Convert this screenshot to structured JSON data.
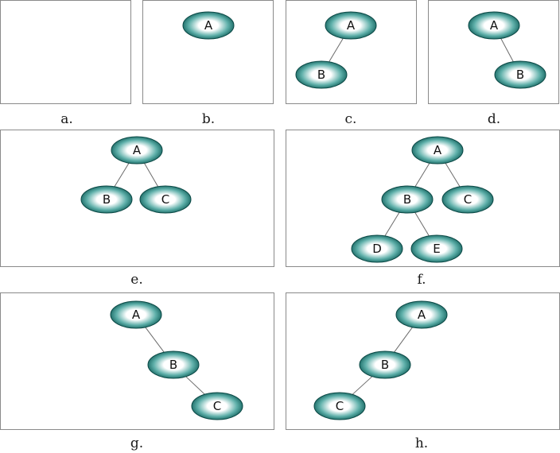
{
  "colors": {
    "node_center": "#ffffff",
    "node_mid": "#5fb0aa",
    "node_edge": "#0b5a55",
    "node_outline": "#0a4744",
    "edge_line": "#6a6a6a"
  },
  "panels": [
    {
      "caption": "a.",
      "nodes": [],
      "edges": []
    },
    {
      "caption": "b.",
      "nodes": [
        "A"
      ],
      "edges": []
    },
    {
      "caption": "c.",
      "nodes": [
        "A",
        "B"
      ],
      "edges": [
        [
          "A",
          "B"
        ]
      ]
    },
    {
      "caption": "d.",
      "nodes": [
        "A",
        "B"
      ],
      "edges": [
        [
          "A",
          "B"
        ]
      ]
    },
    {
      "caption": "e.",
      "nodes": [
        "A",
        "B",
        "C"
      ],
      "edges": [
        [
          "A",
          "B"
        ],
        [
          "A",
          "C"
        ]
      ]
    },
    {
      "caption": "f.",
      "nodes": [
        "A",
        "B",
        "C",
        "D",
        "E"
      ],
      "edges": [
        [
          "A",
          "B"
        ],
        [
          "A",
          "C"
        ],
        [
          "B",
          "D"
        ],
        [
          "B",
          "E"
        ]
      ]
    },
    {
      "caption": "g.",
      "nodes": [
        "A",
        "B",
        "C"
      ],
      "edges": [
        [
          "A",
          "B"
        ],
        [
          "B",
          "C"
        ]
      ]
    },
    {
      "caption": "h.",
      "nodes": [
        "A",
        "B",
        "C"
      ],
      "edges": [
        [
          "A",
          "B"
        ],
        [
          "B",
          "C"
        ]
      ]
    }
  ]
}
